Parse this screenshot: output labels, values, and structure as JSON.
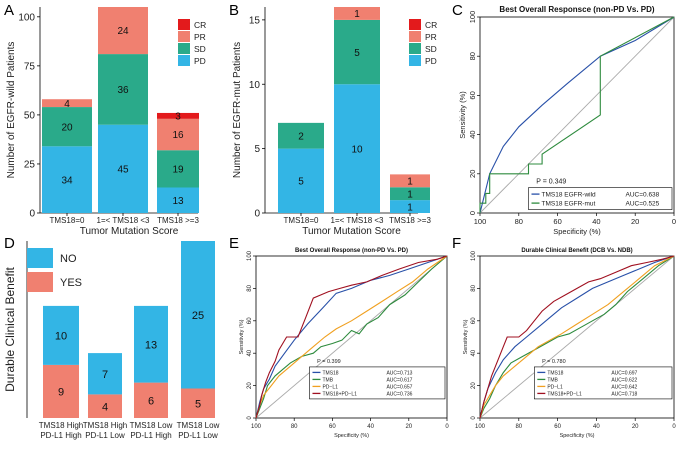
{
  "panels": {
    "A": "A",
    "B": "B",
    "C": "C",
    "D": "D",
    "E": "E",
    "F": "F"
  },
  "chart_data": [
    {
      "id": "A",
      "type": "bar",
      "stacked": true,
      "ylabel": "Number of EGFR-wild Patients",
      "xlabel": "Tumor Mutation Score",
      "ylim": [
        0,
        105
      ],
      "yticks": [
        0,
        25,
        50,
        75,
        100
      ],
      "categories": [
        "TMS18=0",
        "1=< TMS18 <3",
        "TMS18 >=3"
      ],
      "series": [
        {
          "name": "PD",
          "color": "#33b5e5",
          "values": [
            34,
            45,
            13
          ]
        },
        {
          "name": "SD",
          "color": "#2aaa8a",
          "values": [
            20,
            36,
            19
          ]
        },
        {
          "name": "PR",
          "color": "#f08070",
          "values": [
            4,
            24,
            16
          ]
        },
        {
          "name": "CR",
          "color": "#e31a1c",
          "values": [
            0,
            0,
            3
          ]
        }
      ],
      "legend": [
        "CR",
        "PR",
        "SD",
        "PD"
      ],
      "legend_position": "top-right"
    },
    {
      "id": "B",
      "type": "bar",
      "stacked": true,
      "ylabel": "Number of EGFR-mut Patients",
      "xlabel": "Tumor Mutation Score",
      "ylim": [
        0,
        16
      ],
      "yticks": [
        0,
        5,
        10,
        15
      ],
      "categories": [
        "TMS18=0",
        "1=< TMS18 <3",
        "TMS18 >=3"
      ],
      "series": [
        {
          "name": "PD",
          "color": "#33b5e5",
          "values": [
            5,
            10,
            1
          ]
        },
        {
          "name": "SD",
          "color": "#2aaa8a",
          "values": [
            2,
            5,
            1
          ]
        },
        {
          "name": "PR",
          "color": "#f08070",
          "values": [
            0,
            1,
            1
          ]
        },
        {
          "name": "CR",
          "color": "#e31a1c",
          "values": [
            0,
            0,
            0
          ]
        }
      ],
      "legend": [
        "CR",
        "PR",
        "SD",
        "PD"
      ],
      "legend_position": "top-right"
    },
    {
      "id": "C",
      "type": "line",
      "title": "Best Overall Responsce (non-PD Vs. PD)",
      "xlabel": "Specificity (%)",
      "ylabel": "Sensitivity (%)",
      "xlim": [
        100,
        0
      ],
      "ylim": [
        0,
        100
      ],
      "xticks": [
        100,
        80,
        60,
        40,
        20,
        0
      ],
      "yticks": [
        0,
        20,
        40,
        60,
        80,
        100
      ],
      "p_text": "P = 0.349",
      "series": [
        {
          "name": "TMS18 EGFR-wild",
          "auc_label": "AUC=0.638",
          "color": "#2850a8",
          "x": [
            100,
            98,
            95,
            88,
            80,
            68,
            55,
            38,
            20,
            0
          ],
          "y": [
            0,
            8,
            20,
            34,
            44,
            55,
            66,
            80,
            88,
            100
          ]
        },
        {
          "name": "TMS18 EGFR-mut",
          "auc_label": "AUC=0.525",
          "color": "#2e8b3e",
          "x": [
            100,
            100,
            97,
            97,
            95,
            95,
            75,
            75,
            68,
            68,
            38,
            38,
            0
          ],
          "y": [
            0,
            5,
            5,
            10,
            10,
            20,
            20,
            25,
            25,
            30,
            50,
            80,
            100
          ]
        }
      ],
      "legend_position": "bottom-right"
    },
    {
      "id": "D",
      "type": "bar",
      "stacked": true,
      "ylabel": "Durable Clinical Benefit",
      "xlabel": "",
      "ylim": [
        0,
        30
      ],
      "categories": [
        [
          "TMS18 High",
          "PD-L1 High"
        ],
        [
          "TMS18 High",
          "PD-L1 Low"
        ],
        [
          "TMS18 Low",
          "PD-L1 High"
        ],
        [
          "TMS18 Low",
          "PD-L1 Low"
        ]
      ],
      "series": [
        {
          "name": "YES",
          "color": "#f08070",
          "values": [
            9,
            4,
            6,
            5
          ]
        },
        {
          "name": "NO",
          "color": "#33b5e5",
          "values": [
            10,
            7,
            13,
            25
          ]
        }
      ],
      "legend": [
        "NO",
        "YES"
      ],
      "legend_position": "top-left"
    },
    {
      "id": "E",
      "type": "line",
      "title": "Best Overall Response (non-PD Vs. PD)",
      "xlabel": "Specificity (%)",
      "ylabel": "Sensitivity (%)",
      "xlim": [
        100,
        0
      ],
      "ylim": [
        0,
        100
      ],
      "xticks": [
        100,
        80,
        60,
        40,
        20,
        0
      ],
      "yticks": [
        0,
        20,
        40,
        60,
        80,
        100
      ],
      "p_text": "P = 0.399",
      "series": [
        {
          "name": "TMS18",
          "auc_label": "AUC=0.713",
          "color": "#2850a8",
          "x": [
            100,
            98,
            96,
            93,
            90,
            85,
            80,
            73,
            65,
            58,
            50,
            40,
            30,
            20,
            10,
            0
          ],
          "y": [
            0,
            10,
            18,
            24,
            32,
            40,
            48,
            58,
            68,
            77,
            80,
            85,
            88,
            92,
            96,
            100
          ]
        },
        {
          "name": "TMB",
          "auc_label": "AUC=0.617",
          "color": "#2e8b3e",
          "x": [
            100,
            98,
            96,
            94,
            90,
            86,
            82,
            76,
            70,
            66,
            60,
            55,
            50,
            46,
            42,
            36,
            30,
            22,
            15,
            8,
            0
          ],
          "y": [
            0,
            6,
            12,
            20,
            26,
            30,
            34,
            38,
            40,
            44,
            46,
            48,
            54,
            52,
            58,
            62,
            70,
            76,
            84,
            92,
            100
          ]
        },
        {
          "name": "PD−L1",
          "auc_label": "AUC=0.657",
          "color": "#f0a020",
          "x": [
            100,
            98,
            96,
            92,
            88,
            82,
            76,
            70,
            64,
            58,
            50,
            42,
            34,
            26,
            18,
            10,
            0
          ],
          "y": [
            0,
            8,
            14,
            20,
            26,
            32,
            38,
            44,
            50,
            55,
            60,
            66,
            72,
            78,
            84,
            92,
            100
          ]
        },
        {
          "name": "TMS18+PD−L1",
          "auc_label": "AUC=0.736",
          "color": "#a01020",
          "x": [
            100,
            98,
            97,
            95,
            93,
            90,
            88,
            84,
            82,
            78,
            74,
            70,
            66,
            62,
            56,
            50,
            42,
            34,
            25,
            15,
            5,
            0
          ],
          "y": [
            0,
            8,
            14,
            22,
            28,
            35,
            42,
            50,
            50,
            50,
            62,
            74,
            76,
            78,
            80,
            82,
            84,
            88,
            92,
            96,
            98,
            100
          ]
        }
      ],
      "legend_position": "bottom-right"
    },
    {
      "id": "F",
      "type": "line",
      "title": "Durable Clinical Benefit (DCB Vs. NDB)",
      "xlabel": "Specificity (%)",
      "ylabel": "Sensitivity (%)",
      "xlim": [
        100,
        0
      ],
      "ylim": [
        0,
        100
      ],
      "xticks": [
        100,
        80,
        60,
        40,
        20,
        0
      ],
      "yticks": [
        0,
        20,
        40,
        60,
        80,
        100
      ],
      "p_text": "P = 0.780",
      "series": [
        {
          "name": "TMS18",
          "auc_label": "AUC=0.697",
          "color": "#2850a8",
          "x": [
            100,
            98,
            96,
            92,
            88,
            82,
            76,
            70,
            64,
            58,
            50,
            42,
            34,
            26,
            18,
            10,
            0
          ],
          "y": [
            0,
            10,
            18,
            28,
            36,
            44,
            50,
            56,
            62,
            68,
            74,
            80,
            84,
            88,
            92,
            96,
            100
          ]
        },
        {
          "name": "TMB",
          "auc_label": "AUC=0.622",
          "color": "#2e8b3e",
          "x": [
            100,
            98,
            95,
            92,
            88,
            84,
            78,
            72,
            66,
            60,
            54,
            48,
            42,
            36,
            30,
            24,
            16,
            8,
            0
          ],
          "y": [
            0,
            6,
            12,
            20,
            28,
            34,
            38,
            42,
            46,
            50,
            52,
            56,
            60,
            64,
            70,
            78,
            86,
            94,
            100
          ]
        },
        {
          "name": "PD−L1",
          "auc_label": "AUC=0.642",
          "color": "#f0a020",
          "x": [
            100,
            98,
            95,
            92,
            88,
            82,
            76,
            70,
            64,
            58,
            50,
            42,
            34,
            26,
            18,
            10,
            0
          ],
          "y": [
            0,
            8,
            14,
            20,
            26,
            32,
            38,
            44,
            48,
            52,
            58,
            64,
            70,
            78,
            86,
            94,
            100
          ]
        },
        {
          "name": "TMS18+PD−L1",
          "auc_label": "AUC=0.718",
          "color": "#a01020",
          "x": [
            100,
            98,
            96,
            94,
            92,
            90,
            88,
            86,
            84,
            80,
            76,
            72,
            68,
            62,
            56,
            50,
            44,
            38,
            30,
            22,
            14,
            6,
            0
          ],
          "y": [
            0,
            10,
            18,
            26,
            32,
            38,
            44,
            50,
            50,
            50,
            54,
            60,
            66,
            72,
            76,
            80,
            84,
            86,
            90,
            94,
            96,
            98,
            100
          ]
        }
      ],
      "legend_position": "bottom-right"
    }
  ]
}
